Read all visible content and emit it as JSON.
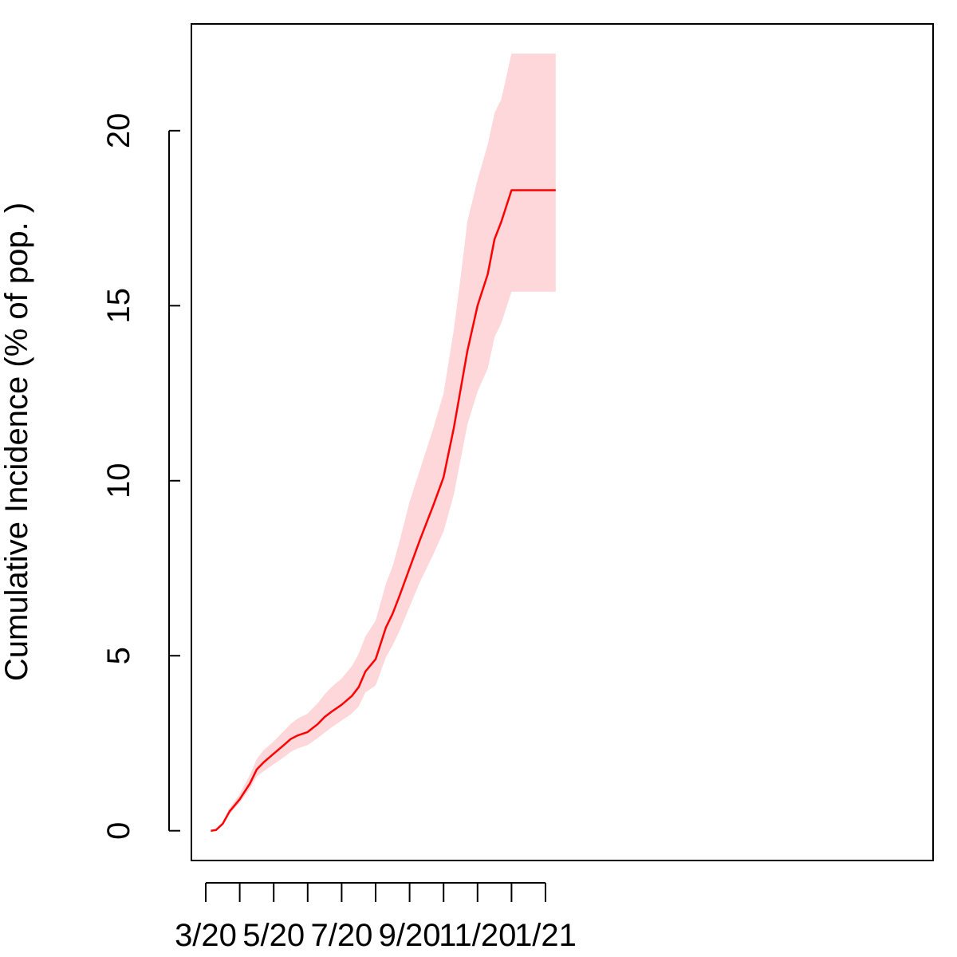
{
  "chart_data": {
    "type": "line",
    "title": "",
    "xlabel": "",
    "ylabel": "Cumulative Incidence (% of pop. )",
    "x_tick_labels": [
      "3/20",
      "5/20",
      "7/20",
      "9/20",
      "11/20",
      "1/21"
    ],
    "x_unlabeled_ticks": [
      "4/20",
      "6/20",
      "8/20",
      "10/20",
      "12/20"
    ],
    "y_ticks": [
      0,
      5,
      10,
      15,
      20
    ],
    "y_tick_labels": [
      "0",
      "5",
      "10",
      "15",
      "20"
    ],
    "ylim": [
      -0.85,
      23.05
    ],
    "xlim_months": [
      "3/20",
      "1/21"
    ],
    "grid": false,
    "colors": {
      "line": "#ff0000",
      "band": "#fdd7d9",
      "frame": "#000000"
    },
    "series": [
      {
        "x": [
          3.15,
          3.3,
          3.5,
          3.7,
          4.0,
          4.3,
          4.5,
          4.7,
          5.0,
          5.3,
          5.5,
          5.7,
          6.0,
          6.3,
          6.5,
          6.7,
          7.0,
          7.3,
          7.5,
          7.7,
          8.0,
          8.3,
          8.5,
          8.7,
          9.0,
          9.3,
          9.5,
          9.7,
          10.0,
          10.3,
          10.5,
          10.7,
          11.0,
          11.3,
          11.5,
          11.7,
          12.0,
          12.3,
          12.5,
          12.7,
          13.0,
          13.3
        ],
        "values": [
          0,
          0.02,
          0.2,
          0.55,
          0.9,
          1.35,
          1.75,
          1.95,
          2.2,
          2.45,
          2.62,
          2.72,
          2.82,
          3.05,
          3.25,
          3.4,
          3.6,
          3.85,
          4.1,
          4.55,
          4.9,
          5.8,
          6.2,
          6.7,
          7.5,
          8.3,
          8.8,
          9.3,
          10.1,
          11.5,
          12.6,
          13.7,
          15.0,
          15.9,
          16.9,
          17.4,
          18.3,
          18.3,
          18.3,
          18.3,
          18.3,
          18.3
        ],
        "lower": [
          0,
          0.02,
          0.18,
          0.48,
          0.8,
          1.2,
          1.55,
          1.7,
          1.9,
          2.1,
          2.25,
          2.35,
          2.45,
          2.65,
          2.8,
          2.95,
          3.15,
          3.35,
          3.55,
          3.95,
          4.15,
          4.95,
          5.3,
          5.7,
          6.4,
          7.1,
          7.5,
          7.9,
          8.55,
          9.6,
          10.6,
          11.6,
          12.55,
          13.2,
          14.1,
          14.5,
          15.4,
          15.4,
          15.4,
          15.4,
          15.4,
          15.4
        ],
        "upper": [
          0,
          0.02,
          0.22,
          0.65,
          1.05,
          1.6,
          2.05,
          2.3,
          2.55,
          2.85,
          3.05,
          3.2,
          3.35,
          3.65,
          3.9,
          4.1,
          4.35,
          4.7,
          5.05,
          5.55,
          6.0,
          7.05,
          7.55,
          8.25,
          9.4,
          10.3,
          10.9,
          11.5,
          12.5,
          14.3,
          15.8,
          17.4,
          18.6,
          19.6,
          20.5,
          20.9,
          22.2,
          22.2,
          22.2,
          22.2,
          22.2,
          22.2
        ]
      }
    ]
  }
}
